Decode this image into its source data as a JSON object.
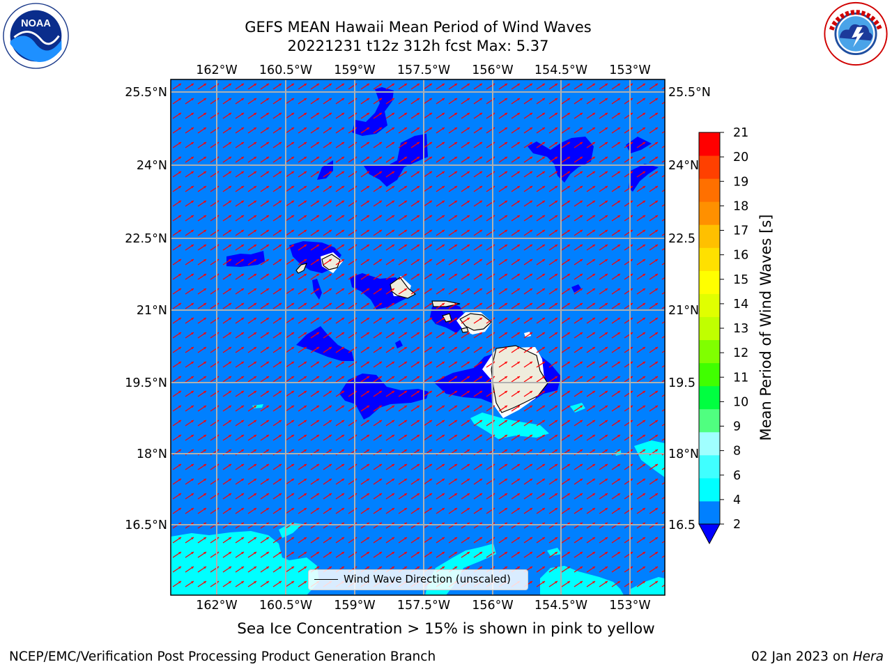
{
  "header": {
    "title_line1": "GEFS MEAN Hawaii Mean Period of Wind Waves",
    "title_line2": "20221231 t12z 312h fcst   Max: 5.37"
  },
  "logos": {
    "left": "noaa-logo",
    "right": "nws-logo"
  },
  "map": {
    "lon_ticks": [
      "162°W",
      "160.5°W",
      "159°W",
      "157.5°W",
      "156°W",
      "154.5°W",
      "153°W"
    ],
    "lat_ticks": [
      "25.5°N",
      "24°N",
      "22.5°N",
      "21°N",
      "19.5°N",
      "18°N",
      "16.5°N"
    ],
    "lat_ticks_right": [
      "25.5°N",
      "24°N",
      "22.5",
      "21°N",
      "19.5",
      "18°N",
      "16.5"
    ],
    "background_color": "#0080ff",
    "arrow_color": "#ff0000",
    "land_color": "#efecdc"
  },
  "legend": {
    "label": "Wind Wave Direction (unscaled)"
  },
  "colorbar": {
    "label": "Mean Period of Wind Waves [s]",
    "ticks": [
      "21",
      "20",
      "19",
      "18",
      "17",
      "16",
      "15",
      "14",
      "13",
      "12",
      "11",
      "10",
      "9",
      "8",
      "6",
      "4",
      "2"
    ],
    "colors": [
      "#0000ff",
      "#0080ff",
      "#00ffff",
      "#40ffff",
      "#a0ffff",
      "#50ff80",
      "#00ff40",
      "#40ff00",
      "#80ff00",
      "#c0ff00",
      "#e0ff00",
      "#ffff00",
      "#ffe000",
      "#ffc000",
      "#ff9000",
      "#ff7000",
      "#ff4000",
      "#ff0000"
    ]
  },
  "footer": {
    "note": "Sea Ice Concentration > 15% is shown in pink to yellow",
    "credit_left": "NCEP/EMC/Verification Post Processing Product Generation Branch",
    "credit_right_date": "02 Jan 2023 on",
    "credit_right_host": "Hera"
  }
}
